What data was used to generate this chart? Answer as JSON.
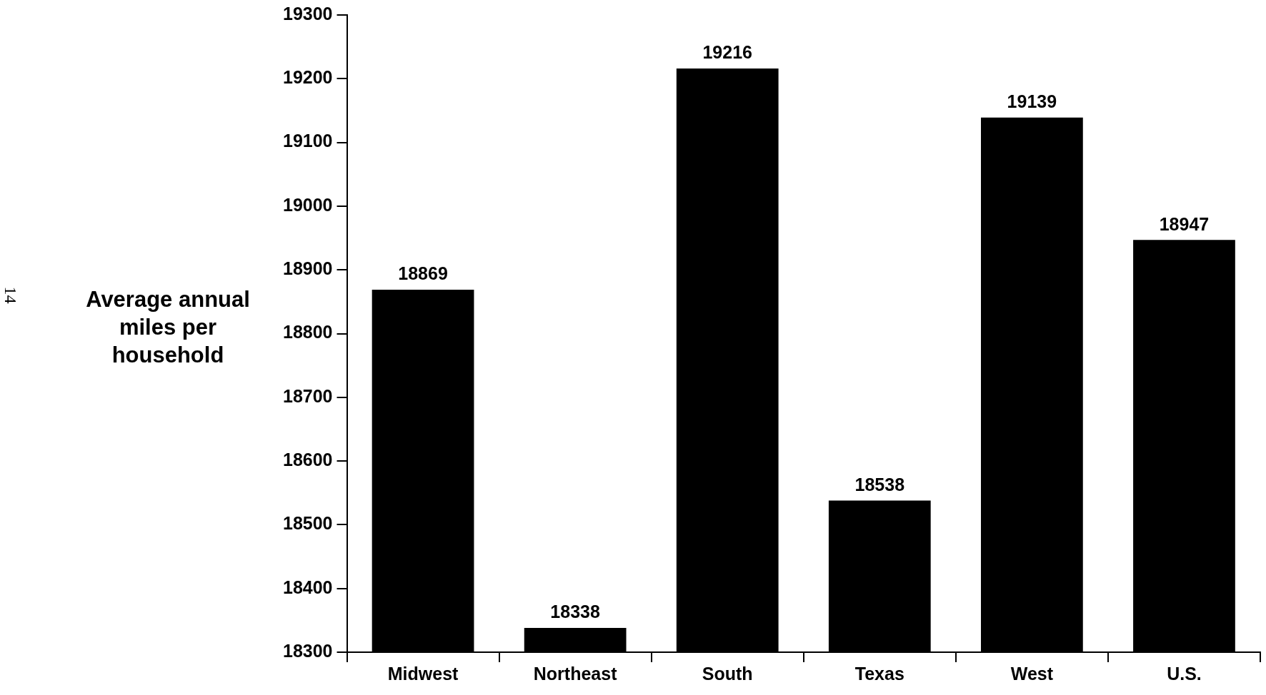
{
  "chart_data": {
    "type": "bar",
    "ylabel": "Average annual miles per household",
    "categories": [
      "Midwest",
      "Northeast",
      "South",
      "Texas",
      "West",
      "U.S."
    ],
    "values": [
      18869,
      18338,
      19216,
      18538,
      19139,
      18947
    ],
    "color": "#000000",
    "ylim": [
      18300,
      19300
    ],
    "yticks": [
      18300,
      18400,
      18500,
      18600,
      18700,
      18800,
      18900,
      19000,
      19100,
      19200,
      19300
    ],
    "grid": false,
    "data_labels": true,
    "annotations": [
      "14"
    ]
  }
}
